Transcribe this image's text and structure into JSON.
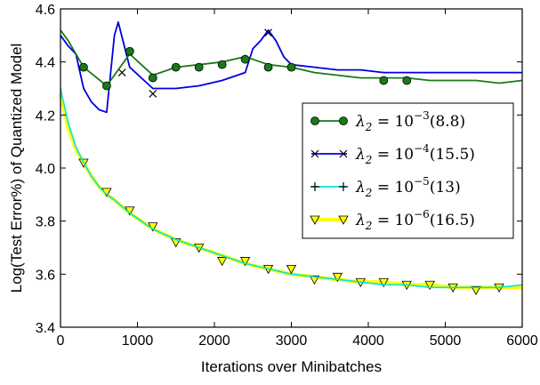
{
  "chart_data": {
    "type": "line",
    "title": "",
    "xlabel": "Iterations over Minibatches",
    "ylabel": "Log(Test Error%) of Quantized Model",
    "xlim": [
      0,
      6000
    ],
    "ylim": [
      3.4,
      4.6
    ],
    "xticks": [
      "0",
      "1000",
      "2000",
      "3000",
      "4000",
      "5000",
      "6000"
    ],
    "yticks": [
      "3.4",
      "3.6",
      "3.8",
      "4.0",
      "4.2",
      "4.4",
      "4.6"
    ],
    "grid": false,
    "legend_position": "center-right",
    "series": [
      {
        "name": "λ2 = 10^-3 (8.8)",
        "legend_base": "λ",
        "legend_sub": "2",
        "legend_mid": " = 10",
        "legend_exp": "−3",
        "legend_tail": "(8.8)",
        "color": "#1a7a1a",
        "marker": "circle",
        "x": [
          0,
          100,
          300,
          600,
          900,
          1200,
          1500,
          1800,
          2100,
          2400,
          2700,
          3000,
          3300,
          3600,
          3900,
          4200,
          4500,
          4800,
          5100,
          5400,
          5700,
          6000
        ],
        "y": [
          4.52,
          4.48,
          4.38,
          4.31,
          4.43,
          4.35,
          4.38,
          4.39,
          4.4,
          4.42,
          4.39,
          4.38,
          4.36,
          4.35,
          4.34,
          4.34,
          4.34,
          4.33,
          4.33,
          4.33,
          4.32,
          4.33
        ],
        "marker_x": [
          300,
          600,
          900,
          1200,
          1500,
          1800,
          2100,
          2400,
          2700,
          3000,
          4200,
          4500
        ],
        "marker_y": [
          4.38,
          4.31,
          4.44,
          4.34,
          4.38,
          4.38,
          4.39,
          4.41,
          4.38,
          4.38,
          4.33,
          4.33
        ]
      },
      {
        "name": "λ2 = 10^-4 (15.5)",
        "legend_base": "λ",
        "legend_sub": "2",
        "legend_mid": " = 10",
        "legend_exp": "−4",
        "legend_tail": "(15.5)",
        "color": "#0000e0",
        "marker": "x",
        "x": [
          0,
          100,
          200,
          300,
          400,
          500,
          600,
          700,
          750,
          900,
          1200,
          1500,
          1800,
          2100,
          2400,
          2500,
          2600,
          2700,
          2800,
          2900,
          3000,
          3300,
          3600,
          3900,
          4200,
          4500,
          4800,
          5100,
          5400,
          5700,
          6000
        ],
        "y": [
          4.5,
          4.46,
          4.43,
          4.3,
          4.25,
          4.22,
          4.21,
          4.5,
          4.55,
          4.38,
          4.3,
          4.3,
          4.31,
          4.33,
          4.36,
          4.45,
          4.48,
          4.52,
          4.48,
          4.42,
          4.39,
          4.38,
          4.37,
          4.37,
          4.36,
          4.36,
          4.36,
          4.36,
          4.36,
          4.36,
          4.36
        ],
        "marker_x": [
          800,
          1200,
          2700
        ],
        "marker_y": [
          4.36,
          4.28,
          4.51
        ]
      },
      {
        "name": "λ2 = 10^-5 (13)",
        "legend_base": "λ",
        "legend_sub": "2",
        "legend_mid": " = 10",
        "legend_exp": "−5",
        "legend_tail": "(13)",
        "color": "#00e5e5",
        "marker": "plus",
        "x": [
          0,
          100,
          200,
          300,
          400,
          500,
          600,
          700,
          900,
          1200,
          1500,
          1800,
          2100,
          2400,
          2700,
          3000,
          3300,
          3600,
          3900,
          4200,
          4500,
          4800,
          5100,
          5400,
          5700,
          6000
        ],
        "y": [
          4.3,
          4.17,
          4.08,
          4.02,
          3.97,
          3.93,
          3.9,
          3.88,
          3.83,
          3.77,
          3.73,
          3.7,
          3.67,
          3.64,
          3.62,
          3.6,
          3.59,
          3.58,
          3.57,
          3.56,
          3.56,
          3.55,
          3.55,
          3.55,
          3.55,
          3.56
        ],
        "marker_x": [],
        "marker_y": []
      },
      {
        "name": "λ2 = 10^-6 (16.5)",
        "legend_base": "λ",
        "legend_sub": "2",
        "legend_mid": " = 10",
        "legend_exp": "−6",
        "legend_tail": "(16.5)",
        "color": "#ffff00",
        "marker": "triangle-down",
        "x": [
          0,
          100,
          200,
          300,
          400,
          500,
          600,
          700,
          900,
          1200,
          1500,
          1800,
          2100,
          2400,
          2700,
          3000,
          3300,
          3600,
          3900,
          4200,
          4500,
          4800,
          5100,
          5400,
          5700,
          6000
        ],
        "y": [
          4.28,
          4.15,
          4.07,
          4.02,
          3.97,
          3.93,
          3.9,
          3.88,
          3.83,
          3.77,
          3.73,
          3.7,
          3.67,
          3.64,
          3.62,
          3.6,
          3.59,
          3.58,
          3.57,
          3.57,
          3.56,
          3.56,
          3.55,
          3.55,
          3.55,
          3.55
        ],
        "marker_x": [
          300,
          600,
          900,
          1200,
          1500,
          1800,
          2100,
          2400,
          2700,
          3000,
          3300,
          3600,
          3900,
          4200,
          4500,
          4800,
          5100,
          5400,
          5700
        ],
        "marker_y": [
          4.02,
          3.91,
          3.84,
          3.78,
          3.72,
          3.7,
          3.65,
          3.65,
          3.62,
          3.62,
          3.58,
          3.59,
          3.57,
          3.57,
          3.56,
          3.56,
          3.55,
          3.54,
          3.55
        ]
      }
    ]
  }
}
